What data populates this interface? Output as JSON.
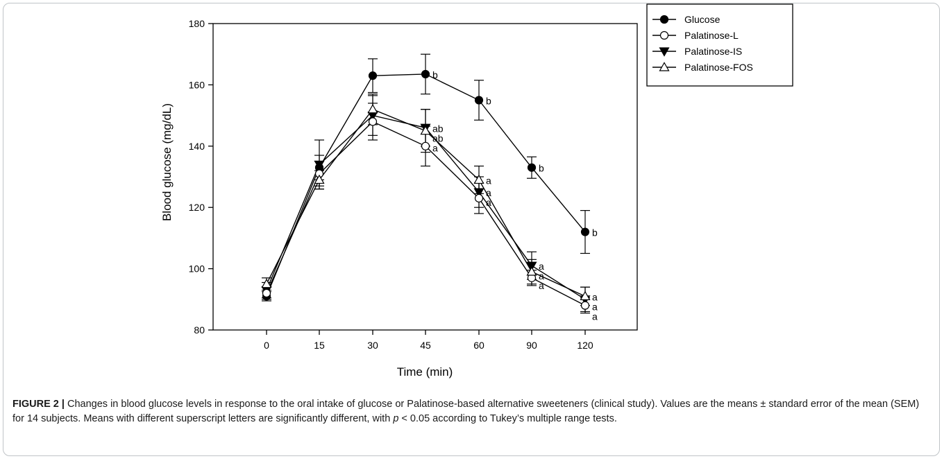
{
  "chart_data": {
    "type": "line",
    "ylabel": "Blood glucose (mg/dL)",
    "xlabel": "Time (min)",
    "categories": [
      "0",
      "15",
      "30",
      "45",
      "60",
      "90",
      "120"
    ],
    "ylim": [
      80,
      180
    ],
    "yticks": [
      80,
      100,
      120,
      140,
      160,
      180
    ],
    "grid": false,
    "legend_position": "top-right",
    "series": [
      {
        "name": "Glucose",
        "marker": "filled-circle",
        "values": [
          91,
          133,
          163,
          163.5,
          155,
          133,
          112
        ],
        "errors": [
          1.5,
          4,
          5.5,
          6.5,
          6.5,
          3.5,
          7
        ],
        "letters": [
          "",
          "",
          "",
          "b",
          "b",
          "b",
          "b"
        ]
      },
      {
        "name": "Palatinose-L",
        "marker": "open-circle",
        "values": [
          92,
          131,
          148,
          140,
          123,
          97,
          88
        ],
        "errors": [
          2,
          4,
          6,
          6.5,
          5,
          2.5,
          2.5
        ],
        "letters": [
          "",
          "",
          "",
          "a",
          "a",
          "a",
          "a"
        ]
      },
      {
        "name": "Palatinose-IS",
        "marker": "filled-triangle-down",
        "values": [
          93,
          134,
          150,
          146,
          125,
          101,
          90
        ],
        "errors": [
          2.5,
          8,
          6.5,
          6,
          5,
          4.5,
          4
        ],
        "letters": [
          "",
          "",
          "",
          "ab",
          "a",
          "a",
          "a"
        ]
      },
      {
        "name": "Palatinose-FOS",
        "marker": "open-triangle-up",
        "values": [
          95,
          129,
          152,
          145,
          129,
          99,
          91
        ],
        "errors": [
          2,
          3,
          5,
          7,
          4.5,
          4,
          3
        ],
        "letters": [
          "",
          "",
          "",
          "ab",
          "a",
          "a",
          "a"
        ]
      }
    ]
  },
  "caption": {
    "lead": "FIGURE 2 |",
    "text_before_p": " Changes in blood glucose levels in response to the oral intake of glucose or Palatinose-based alternative sweeteners (clinical study). Values are the means ± standard error of the mean (SEM) for 14 subjects. Means with different superscript letters are significantly different, with ",
    "p_symbol": "p",
    "text_after_p": " < 0.05 according to Tukey’s multiple range tests."
  }
}
